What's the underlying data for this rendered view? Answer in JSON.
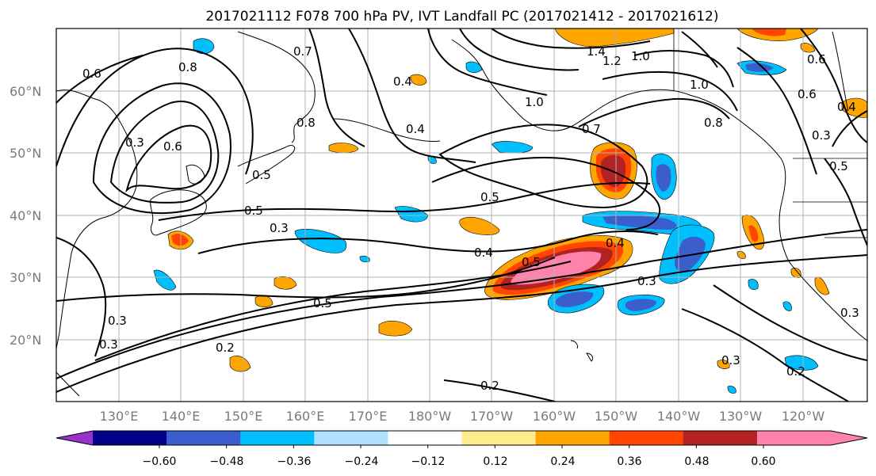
{
  "title": "2017021112 F078 700 hPa PV, IVT Landfall PC (2017021412 - 2017021612)",
  "map": {
    "lat_labels": [
      "60°N",
      "50°N",
      "40°N",
      "30°N",
      "20°N"
    ],
    "lon_labels": [
      "130°E",
      "140°E",
      "150°E",
      "160°E",
      "170°E",
      "180°W",
      "170°W",
      "160°W",
      "150°W",
      "140°W",
      "130°W",
      "120°W"
    ],
    "contour_labels": [
      "0.6",
      "0.8",
      "0.3",
      "0.6",
      "0.8",
      "0.7",
      "0.4",
      "0.5",
      "0.5",
      "0.3",
      "0.4",
      "0.5",
      "0.4",
      "0.5",
      "0.4",
      "0.3",
      "0.5",
      "0.2",
      "0.2",
      "0.3",
      "0.2",
      "0.3",
      "1.4",
      "1.2",
      "1.0",
      "1.0",
      "0.7",
      "1.0",
      "0.8",
      "0.6",
      "0.6",
      "0.4",
      "0.3",
      "0.5",
      "0.3",
      "0.3"
    ]
  },
  "colorbar": {
    "ticks": [
      "−0.60",
      "−0.48",
      "−0.36",
      "−0.24",
      "−0.12",
      "0.12",
      "0.24",
      "0.36",
      "0.48",
      "0.60"
    ],
    "colors": [
      "#9932cc",
      "#00008b",
      "#3a5fcd",
      "#00bfff",
      "#b0e2ff",
      "#ffffff",
      "#ffec8b",
      "#ffa500",
      "#ff4500",
      "#b22222",
      "#ff82ab",
      "#ff82ab"
    ]
  }
}
